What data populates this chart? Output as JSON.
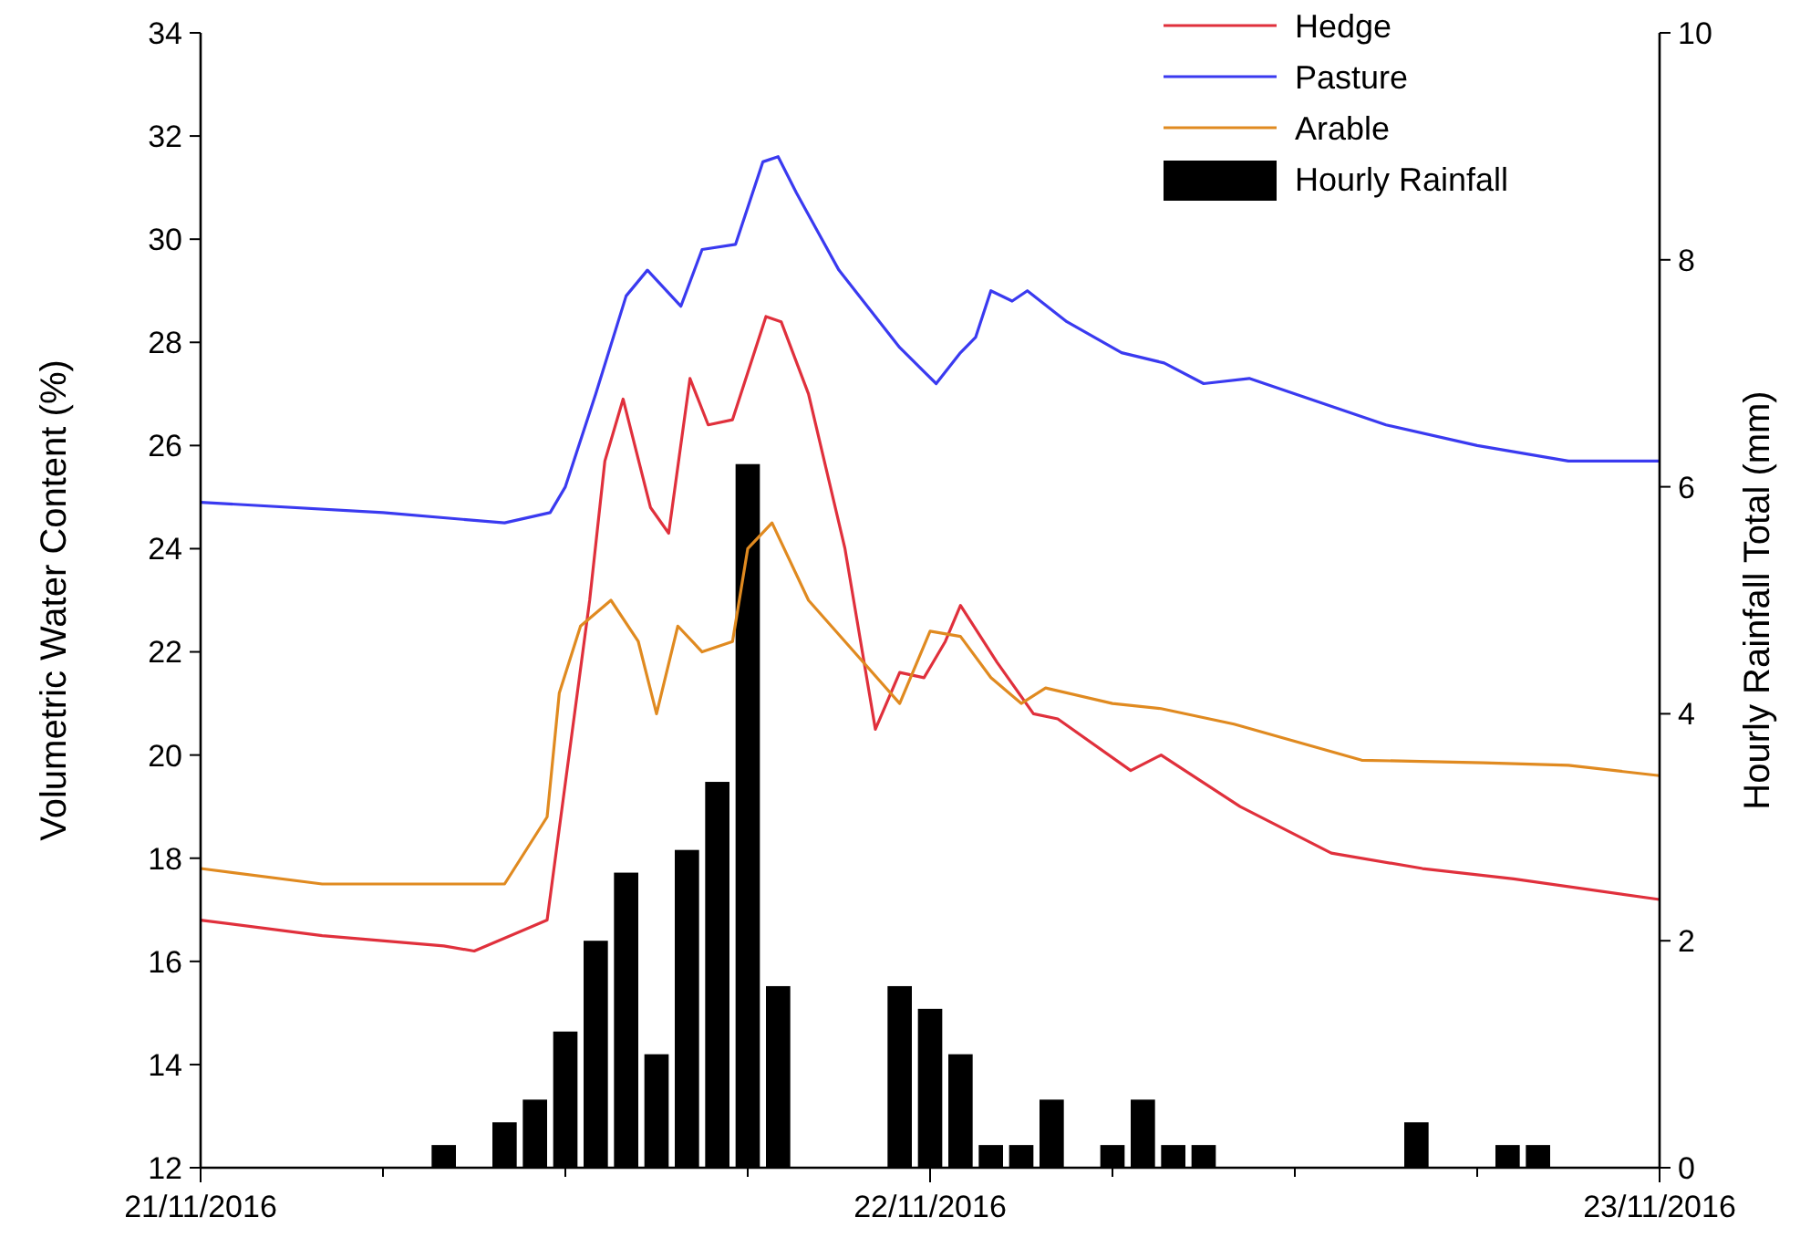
{
  "chart_data": {
    "type": "line",
    "ylabel": "Volumetric Water Content (%)",
    "y2label": "Hourly Rainfall Total (mm)",
    "xlim": [
      "2016-11-21",
      "2016-11-23"
    ],
    "xticks": [
      {
        "value": "2016-11-21",
        "label": "21/11/2016"
      },
      {
        "value": "2016-11-21T06:00",
        "label": null
      },
      {
        "value": "2016-11-21T12:00",
        "label": null
      },
      {
        "value": "2016-11-21T18:00",
        "label": null
      },
      {
        "value": "2016-11-22",
        "label": "22/11/2016"
      },
      {
        "value": "2016-11-22T06:00",
        "label": null
      },
      {
        "value": "2016-11-22T12:00",
        "label": null
      },
      {
        "value": "2016-11-22T18:00",
        "label": null
      },
      {
        "value": "2016-11-23",
        "label": "23/11/2016"
      }
    ],
    "ylim": [
      12,
      34
    ],
    "yticks": [
      12,
      14,
      16,
      18,
      20,
      22,
      24,
      26,
      28,
      30,
      32,
      34
    ],
    "y2lim": [
      0,
      10
    ],
    "y2ticks": [
      0,
      2,
      4,
      6,
      8,
      10
    ],
    "legend": "top right",
    "grid": false,
    "marker": "none",
    "line_style": "solid",
    "series": [
      {
        "name": "Hedge",
        "color": "#e0303c",
        "x": [
          "2016-11-21T00:00",
          "2016-11-21T04:00",
          "2016-11-21T08:00",
          "2016-11-21T09:00",
          "2016-11-21T11:24",
          "2016-11-21T12:48",
          "2016-11-21T13:18",
          "2016-11-21T13:54",
          "2016-11-21T14:48",
          "2016-11-21T15:24",
          "2016-11-21T16:06",
          "2016-11-21T16:42",
          "2016-11-21T17:30",
          "2016-11-21T18:36",
          "2016-11-21T19:06",
          "2016-11-21T20:00",
          "2016-11-21T21:12",
          "2016-11-21T22:12",
          "2016-11-21T23:00",
          "2016-11-21T23:48",
          "2016-11-22T00:30",
          "2016-11-22T01:00",
          "2016-11-22T02:12",
          "2016-11-22T03:24",
          "2016-11-22T04:12",
          "2016-11-22T06:36",
          "2016-11-22T07:36",
          "2016-11-22T10:12",
          "2016-11-22T13:12",
          "2016-11-22T16:12",
          "2016-11-22T19:12",
          "2016-11-23T00:00"
        ],
        "values": [
          16.8,
          16.5,
          16.3,
          16.2,
          16.8,
          23,
          25.7,
          26.9,
          24.8,
          24.3,
          27.3,
          26.4,
          26.5,
          28.5,
          28.4,
          27,
          24,
          20.5,
          21.6,
          21.5,
          22.2,
          22.9,
          21.8,
          20.8,
          20.7,
          19.7,
          20,
          19,
          18.1,
          17.8,
          17.6,
          17.2
        ]
      },
      {
        "name": "Pasture",
        "color": "#3a3af0",
        "x": [
          "2016-11-21T00:00",
          "2016-11-21T06:00",
          "2016-11-21T10:00",
          "2016-11-21T11:30",
          "2016-11-21T12:00",
          "2016-11-21T13:00",
          "2016-11-21T14:00",
          "2016-11-21T14:42",
          "2016-11-21T15:48",
          "2016-11-21T16:30",
          "2016-11-21T17:36",
          "2016-11-21T18:30",
          "2016-11-21T19:00",
          "2016-11-21T19:36",
          "2016-11-21T21:00",
          "2016-11-21T23:00",
          "2016-11-22T00:12",
          "2016-11-22T01:00",
          "2016-11-22T01:30",
          "2016-11-22T02:00",
          "2016-11-22T02:42",
          "2016-11-22T03:12",
          "2016-11-22T04:30",
          "2016-11-22T06:18",
          "2016-11-22T07:42",
          "2016-11-22T09:00",
          "2016-11-22T10:30",
          "2016-11-22T12:00",
          "2016-11-22T15:00",
          "2016-11-22T18:00",
          "2016-11-22T21:00",
          "2016-11-23T00:00"
        ],
        "values": [
          24.9,
          24.7,
          24.5,
          24.7,
          25.2,
          27,
          28.9,
          29.4,
          28.7,
          29.8,
          29.9,
          31.5,
          31.6,
          30.9,
          29.4,
          27.9,
          27.2,
          27.8,
          28.1,
          29,
          28.8,
          29,
          28.4,
          27.8,
          27.6,
          27.2,
          27.3,
          27,
          26.4,
          26,
          25.7,
          25.7
        ]
      },
      {
        "name": "Arable",
        "color": "#e08a20",
        "x": [
          "2016-11-21T00:00",
          "2016-11-21T04:00",
          "2016-11-21T08:00",
          "2016-11-21T10:00",
          "2016-11-21T11:24",
          "2016-11-21T11:48",
          "2016-11-21T12:30",
          "2016-11-21T13:30",
          "2016-11-21T14:24",
          "2016-11-21T15:00",
          "2016-11-21T15:42",
          "2016-11-21T16:30",
          "2016-11-21T17:30",
          "2016-11-21T18:00",
          "2016-11-21T18:48",
          "2016-11-21T20:00",
          "2016-11-21T21:30",
          "2016-11-21T23:00",
          "2016-11-22T00:00",
          "2016-11-22T01:00",
          "2016-11-22T02:00",
          "2016-11-22T03:00",
          "2016-11-22T03:48",
          "2016-11-22T06:00",
          "2016-11-22T07:36",
          "2016-11-22T10:00",
          "2016-11-22T14:12",
          "2016-11-22T18:12",
          "2016-11-22T21:00",
          "2016-11-23T00:00"
        ],
        "values": [
          17.8,
          17.5,
          17.5,
          17.5,
          18.8,
          21.2,
          22.5,
          23,
          22.2,
          20.8,
          22.5,
          22,
          22.2,
          24,
          24.5,
          23,
          22,
          21,
          22.4,
          22.3,
          21.5,
          21,
          21.3,
          21,
          20.9,
          20.6,
          19.9,
          19.85,
          19.8,
          19.6
        ]
      },
      {
        "name": "Hourly Rainfall",
        "type": "bar",
        "axis": "y2",
        "color": "#000000",
        "x": [
          "2016-11-21T08:00",
          "2016-11-21T10:00",
          "2016-11-21T11:00",
          "2016-11-21T12:00",
          "2016-11-21T13:00",
          "2016-11-21T14:00",
          "2016-11-21T15:00",
          "2016-11-21T16:00",
          "2016-11-21T17:00",
          "2016-11-21T18:00",
          "2016-11-21T19:00",
          "2016-11-21T23:00",
          "2016-11-22T00:00",
          "2016-11-22T01:00",
          "2016-11-22T02:00",
          "2016-11-22T03:00",
          "2016-11-22T04:00",
          "2016-11-22T06:00",
          "2016-11-22T07:00",
          "2016-11-22T08:00",
          "2016-11-22T09:00",
          "2016-11-22T16:00",
          "2016-11-22T19:00",
          "2016-11-22T20:00"
        ],
        "values": [
          0.2,
          0.4,
          0.6,
          1.2,
          2,
          2.6,
          1,
          2.8,
          3.4,
          6.2,
          1.6,
          1.6,
          1.4,
          1,
          0.2,
          0.2,
          0.6,
          0.2,
          0.6,
          0.2,
          0.2,
          0.4,
          0.2,
          0.2
        ]
      }
    ]
  }
}
